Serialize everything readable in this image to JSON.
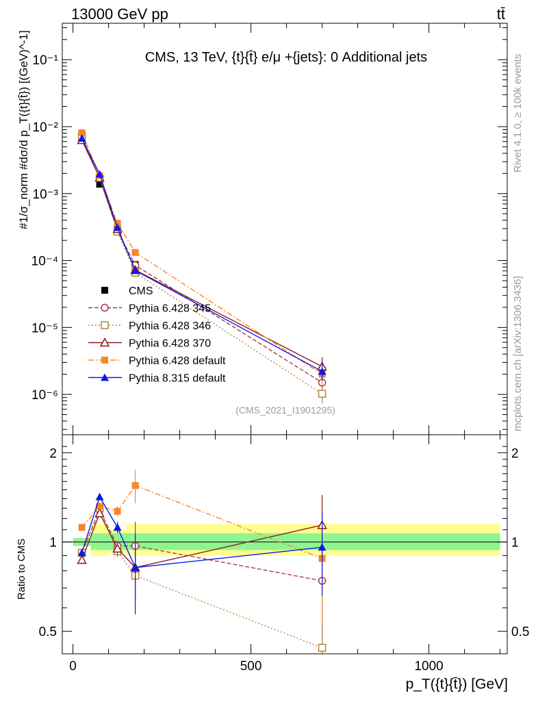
{
  "header": {
    "energy_label": "13000 GeV pp",
    "process_label": "tt̄"
  },
  "side": {
    "rivet_label": "Rivet 4.1.0, ≥ 100k events",
    "site_label": "mcplots.cern.ch [arXiv:1306.3436]"
  },
  "chart_data": [
    {
      "type": "line",
      "title": "CMS, 13 TeV, {t}{t̄} e/μ +{jets}: 0 Additional jets",
      "analysis_id": "(CMS_2021_I1901295)",
      "ylabel": "#1/σ_norm #dσ/d p_T({t}{t̄}) [(GeV)^-1]",
      "yscale": "log",
      "ylim": [
        2.5e-07,
        0.35
      ],
      "y_ticks": [
        1e-06,
        1e-05,
        0.0001,
        0.001,
        0.01,
        0.1
      ],
      "y_tick_labels": [
        "10⁻⁶",
        "10⁻⁵",
        "10⁻⁴",
        "10⁻³",
        "10⁻²",
        "10⁻¹"
      ],
      "xlim": [
        -30,
        1220
      ],
      "x": [
        25,
        75,
        125,
        175,
        700
      ],
      "series": [
        {
          "name": "CMS",
          "color": "#000000",
          "marker": "square-filled",
          "dash": "",
          "values": [
            0.0073,
            0.00138,
            0.00031,
            8.7e-05,
            2.3e-06
          ]
        },
        {
          "name": "Pythia 6.428 345",
          "color": "#a63d4a",
          "marker": "circle-open",
          "dash": "6,3",
          "values": [
            0.0068,
            0.0017,
            0.00028,
            8.5e-05,
            1.5e-06
          ]
        },
        {
          "name": "Pythia 6.428 346",
          "color": "#b5863c",
          "marker": "square-open",
          "dash": "2,3",
          "values": [
            0.0072,
            0.0017,
            0.00027,
            6.6e-05,
            1.02e-06
          ]
        },
        {
          "name": "Pythia 6.428 370",
          "color": "#8b1a1a",
          "marker": "triangle-open",
          "dash": "",
          "values": [
            0.0063,
            0.00172,
            0.000295,
            7.2e-05,
            2.6e-06
          ]
        },
        {
          "name": "Pythia 6.428 default",
          "color": "#f5872a",
          "marker": "square-filled",
          "dash": "8,3,2,3",
          "values": [
            0.0081,
            0.00185,
            0.00036,
            0.000132,
            2e-06
          ]
        },
        {
          "name": "Pythia 8.315 default",
          "color": "#0a1be6",
          "marker": "triangle-filled",
          "dash": "",
          "values": [
            0.0067,
            0.00195,
            0.00031,
            7.1e-05,
            2.2e-06
          ]
        }
      ]
    },
    {
      "type": "line",
      "ylabel": "Ratio to CMS",
      "xlabel": "p_T({t}{t̄}) [GeV]",
      "yscale": "log",
      "ylim": [
        0.42,
        2.3
      ],
      "y_ticks": [
        0.5,
        1,
        2
      ],
      "y_tick_labels": [
        "0.5",
        "1",
        "2"
      ],
      "x_ticks": [
        0,
        500,
        1000
      ],
      "x_tick_labels": [
        "0",
        "500",
        "1000"
      ],
      "x": [
        25,
        75,
        125,
        175,
        700
      ],
      "band_inner": [
        {
          "x0": 0,
          "x1": 50,
          "lo": 0.97,
          "hi": 1.03
        },
        {
          "x0": 50,
          "x1": 1200,
          "lo": 0.94,
          "hi": 1.07
        }
      ],
      "band_outer": [
        {
          "x0": 0,
          "x1": 50,
          "lo": 0.97,
          "hi": 1.03
        },
        {
          "x0": 50,
          "x1": 100,
          "lo": 0.9,
          "hi": 1.15
        },
        {
          "x0": 100,
          "x1": 150,
          "lo": 0.92,
          "hi": 1.1
        },
        {
          "x0": 150,
          "x1": 200,
          "lo": 0.9,
          "hi": 1.15
        },
        {
          "x0": 200,
          "x1": 1200,
          "lo": 0.9,
          "hi": 1.15
        }
      ],
      "series": [
        {
          "name": "Pythia 6.428 345",
          "values": [
            0.92,
            1.28,
            0.97,
            0.97,
            0.74
          ],
          "errors": [
            0.01,
            0.03,
            0.04,
            0.2,
            0.3
          ]
        },
        {
          "name": "Pythia 6.428 346",
          "values": [
            0.92,
            1.3,
            0.93,
            0.77,
            0.44
          ],
          "errors": [
            0.01,
            0.03,
            0.04,
            0.17,
            0.2
          ]
        },
        {
          "name": "Pythia 6.428 370",
          "values": [
            0.87,
            1.25,
            0.95,
            0.82,
            1.14
          ],
          "errors": [
            0.01,
            0.03,
            0.04,
            0.18,
            0.3
          ]
        },
        {
          "name": "Pythia 6.428 default",
          "values": [
            1.12,
            1.32,
            1.27,
            1.55,
            0.88
          ],
          "errors": [
            0.01,
            0.03,
            0.05,
            0.2,
            0.35
          ]
        },
        {
          "name": "Pythia 8.315 default",
          "values": [
            0.92,
            1.42,
            1.12,
            0.82,
            0.96
          ],
          "errors": [
            0.01,
            0.03,
            0.05,
            0.25,
            0.3
          ]
        }
      ]
    }
  ]
}
